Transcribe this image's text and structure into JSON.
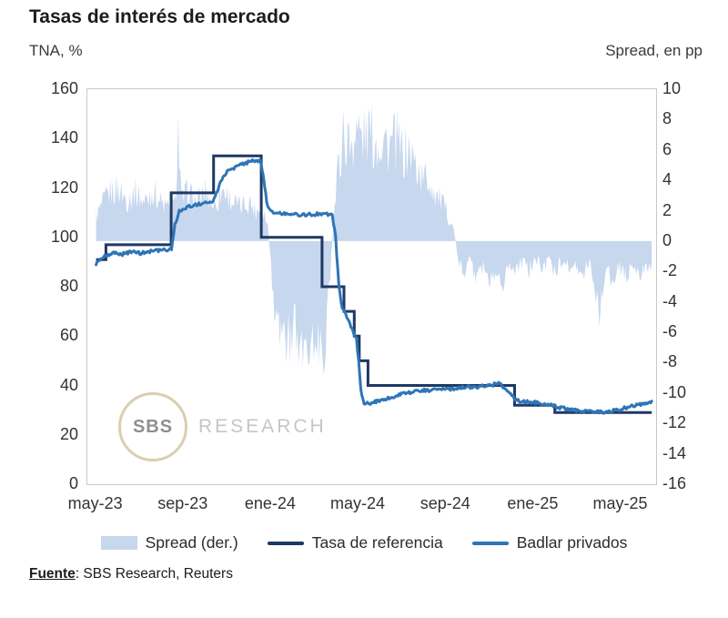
{
  "title": "Tasas de interés de mercado",
  "left_axis_title": "TNA, %",
  "right_axis_title": "Spread, en pp",
  "watermark": {
    "circle_text": "SBS",
    "text": "RESEARCH"
  },
  "source": {
    "label": "Fuente",
    "rest": ": SBS Research, Reuters"
  },
  "colors": {
    "spread_fill": "#c6d7ee",
    "tasa": "#1f3864",
    "badlar": "#2e75b6",
    "text": "#333333"
  },
  "legend": [
    {
      "label": "Spread (der.)",
      "type": "area",
      "color": "#c6d7ee"
    },
    {
      "label": "Tasa de referencia",
      "type": "line",
      "color": "#1f3864"
    },
    {
      "label": "Badlar privados",
      "type": "line",
      "color": "#2e75b6"
    }
  ],
  "chart_data": {
    "type": "line",
    "title": "Tasas de interés de mercado",
    "x_unit": "months since may-2023",
    "x_domain": [
      -0.4,
      25.6
    ],
    "x_ticks": [
      {
        "x": 0,
        "label": "may-23"
      },
      {
        "x": 4,
        "label": "sep-23"
      },
      {
        "x": 8,
        "label": "ene-24"
      },
      {
        "x": 12,
        "label": "may-24"
      },
      {
        "x": 16,
        "label": "sep-24"
      },
      {
        "x": 20,
        "label": "ene-25"
      },
      {
        "x": 24,
        "label": "may-25"
      }
    ],
    "left_axis": {
      "title": "TNA, %",
      "min": 0,
      "max": 160,
      "ticks": [
        160,
        140,
        120,
        100,
        80,
        60,
        40,
        20,
        0
      ]
    },
    "right_axis": {
      "title": "Spread, en pp",
      "min": -16,
      "max": 10,
      "ticks": [
        10,
        8,
        6,
        4,
        2,
        0,
        -2,
        -4,
        -6,
        -8,
        -10,
        -12,
        -14,
        -16
      ]
    },
    "grid": false,
    "legend_position": "bottom",
    "series": [
      {
        "name": "Spread (der.)",
        "axis": "right",
        "style": "area",
        "color": "#c6d7ee",
        "note": "daily spread in pp; values are approximate top envelope read from chart",
        "envelope": [
          [
            0,
            2.2
          ],
          [
            0.3,
            3.2
          ],
          [
            0.6,
            4.2
          ],
          [
            1.0,
            4.6
          ],
          [
            1.4,
            3.6
          ],
          [
            1.8,
            4.3
          ],
          [
            2.2,
            3.4
          ],
          [
            2.6,
            4.4
          ],
          [
            3.0,
            3.3
          ],
          [
            3.4,
            2.7
          ],
          [
            3.6,
            3.2
          ],
          [
            3.75,
            9.6
          ],
          [
            3.9,
            3.5
          ],
          [
            4.2,
            4.3
          ],
          [
            4.6,
            3.4
          ],
          [
            5.0,
            4.4
          ],
          [
            5.4,
            3.0
          ],
          [
            5.8,
            4.6
          ],
          [
            6.2,
            3.5
          ],
          [
            6.6,
            2.9
          ],
          [
            7.0,
            3.5
          ],
          [
            7.3,
            2.6
          ],
          [
            7.6,
            3.1
          ],
          [
            7.85,
            1.4
          ],
          [
            8.0,
            -2.5
          ],
          [
            8.15,
            -6.5
          ],
          [
            8.3,
            -8.8
          ],
          [
            8.5,
            -7.2
          ],
          [
            8.7,
            -9.2
          ],
          [
            9.0,
            -7.6
          ],
          [
            9.3,
            -9.4
          ],
          [
            9.6,
            -8.0
          ],
          [
            9.9,
            -9.2
          ],
          [
            10.2,
            -8.4
          ],
          [
            10.45,
            -9.2
          ],
          [
            10.6,
            -6.0
          ],
          [
            10.75,
            -1.5
          ],
          [
            10.9,
            3.0
          ],
          [
            11.1,
            7.0
          ],
          [
            11.3,
            9.2
          ],
          [
            11.6,
            8.4
          ],
          [
            11.9,
            9.8
          ],
          [
            12.2,
            9.0
          ],
          [
            12.5,
            9.6
          ],
          [
            12.8,
            8.6
          ],
          [
            13.1,
            9.3
          ],
          [
            13.4,
            8.2
          ],
          [
            13.7,
            8.8
          ],
          [
            14.0,
            7.6
          ],
          [
            14.3,
            8.0
          ],
          [
            14.6,
            6.6
          ],
          [
            14.9,
            5.6
          ],
          [
            15.2,
            5.4
          ],
          [
            15.5,
            4.2
          ],
          [
            15.8,
            3.4
          ],
          [
            16.1,
            2.2
          ],
          [
            16.35,
            1.0
          ],
          [
            16.55,
            -1.5
          ],
          [
            16.8,
            -2.7
          ],
          [
            17.1,
            -1.9
          ],
          [
            17.4,
            -3.1
          ],
          [
            17.7,
            -2.1
          ],
          [
            18.0,
            -3.3
          ],
          [
            18.3,
            -2.3
          ],
          [
            18.6,
            -3.4
          ],
          [
            18.9,
            -2.1
          ],
          [
            19.2,
            -2.9
          ],
          [
            19.5,
            -1.7
          ],
          [
            19.8,
            -2.5
          ],
          [
            20.1,
            -1.5
          ],
          [
            20.4,
            -2.3
          ],
          [
            20.7,
            -1.7
          ],
          [
            21.0,
            -2.7
          ],
          [
            21.3,
            -1.7
          ],
          [
            21.6,
            -2.5
          ],
          [
            21.9,
            -1.9
          ],
          [
            22.2,
            -2.9
          ],
          [
            22.5,
            -2.1
          ],
          [
            22.8,
            -3.6
          ],
          [
            23.0,
            -7.0
          ],
          [
            23.15,
            -4.2
          ],
          [
            23.35,
            -2.7
          ],
          [
            23.6,
            -3.3
          ],
          [
            23.9,
            -2.3
          ],
          [
            24.2,
            -3.1
          ],
          [
            24.5,
            -2.1
          ],
          [
            24.8,
            -2.9
          ],
          [
            25.1,
            -2.3
          ],
          [
            25.4,
            -2.7
          ]
        ]
      },
      {
        "name": "Tasa de referencia",
        "axis": "left",
        "style": "step",
        "color": "#1f3864",
        "points": [
          [
            0,
            91
          ],
          [
            0.45,
            97
          ],
          [
            3.43,
            118
          ],
          [
            5.37,
            133
          ],
          [
            7.55,
            100
          ],
          [
            10.33,
            80
          ],
          [
            11.33,
            70
          ],
          [
            11.8,
            60
          ],
          [
            12.03,
            50
          ],
          [
            12.43,
            40
          ],
          [
            19.13,
            32
          ],
          [
            20.97,
            29
          ],
          [
            25.4,
            29
          ]
        ]
      },
      {
        "name": "Badlar privados",
        "axis": "left",
        "style": "line",
        "color": "#2e75b6",
        "points": [
          [
            0,
            89.5
          ],
          [
            0.2,
            91.0
          ],
          [
            0.45,
            92.5
          ],
          [
            0.8,
            93.5
          ],
          [
            1.2,
            93.2
          ],
          [
            1.6,
            94.0
          ],
          [
            2.0,
            93.6
          ],
          [
            2.4,
            94.2
          ],
          [
            2.8,
            94.6
          ],
          [
            3.2,
            94.8
          ],
          [
            3.45,
            95.5
          ],
          [
            3.6,
            105.0
          ],
          [
            3.8,
            110.5
          ],
          [
            4.1,
            112.0
          ],
          [
            4.5,
            113.0
          ],
          [
            5.0,
            114.0
          ],
          [
            5.35,
            114.8
          ],
          [
            5.55,
            119.0
          ],
          [
            5.75,
            123.5
          ],
          [
            6.0,
            126.5
          ],
          [
            6.4,
            128.5
          ],
          [
            6.8,
            130.0
          ],
          [
            7.2,
            131.0
          ],
          [
            7.5,
            131.0
          ],
          [
            7.65,
            125.0
          ],
          [
            7.8,
            114.0
          ],
          [
            8.0,
            110.5
          ],
          [
            8.4,
            109.8
          ],
          [
            8.8,
            109.5
          ],
          [
            9.2,
            109.3
          ],
          [
            9.6,
            109.1
          ],
          [
            10.0,
            109.4
          ],
          [
            10.4,
            109.6
          ],
          [
            10.8,
            109.0
          ],
          [
            10.95,
            100.0
          ],
          [
            11.1,
            80.0
          ],
          [
            11.25,
            71.0
          ],
          [
            11.45,
            68.0
          ],
          [
            11.6,
            65.0
          ],
          [
            11.75,
            61.5
          ],
          [
            11.9,
            59.0
          ],
          [
            12.0,
            50.0
          ],
          [
            12.1,
            38.0
          ],
          [
            12.25,
            32.5
          ],
          [
            12.5,
            32.8
          ],
          [
            12.9,
            33.8
          ],
          [
            13.3,
            34.8
          ],
          [
            13.7,
            35.8
          ],
          [
            14.1,
            36.8
          ],
          [
            14.5,
            37.4
          ],
          [
            14.9,
            38.2
          ],
          [
            15.3,
            38.0
          ],
          [
            15.7,
            38.6
          ],
          [
            16.1,
            38.4
          ],
          [
            16.5,
            39.0
          ],
          [
            16.9,
            39.4
          ],
          [
            17.3,
            39.2
          ],
          [
            17.7,
            39.8
          ],
          [
            18.1,
            40.2
          ],
          [
            18.4,
            41.0
          ],
          [
            18.7,
            38.5
          ],
          [
            19.0,
            36.0
          ],
          [
            19.2,
            34.0
          ],
          [
            19.5,
            33.5
          ],
          [
            19.9,
            33.2
          ],
          [
            20.3,
            33.0
          ],
          [
            20.7,
            32.2
          ],
          [
            21.1,
            31.2
          ],
          [
            21.5,
            30.6
          ],
          [
            21.9,
            30.0
          ],
          [
            22.3,
            29.6
          ],
          [
            22.7,
            29.4
          ],
          [
            23.1,
            29.2
          ],
          [
            23.5,
            29.6
          ],
          [
            23.9,
            30.2
          ],
          [
            24.3,
            31.2
          ],
          [
            24.7,
            32.2
          ],
          [
            25.0,
            32.6
          ],
          [
            25.4,
            33.2
          ]
        ]
      }
    ]
  }
}
